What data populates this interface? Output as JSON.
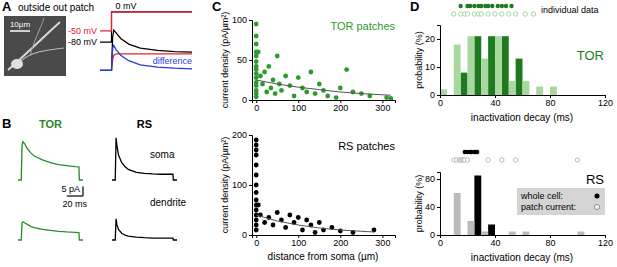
{
  "chart_data": [
    {
      "type": "line",
      "panel": "A",
      "title": "outside out patch",
      "scale_bar_label": "10µm",
      "xlim": [
        0,
        80
      ],
      "ylim": [
        -2,
        16
      ],
      "tick_labels": false,
      "x": [
        0,
        10,
        11,
        12,
        14,
        18,
        25,
        35,
        50,
        65,
        80
      ],
      "series": [
        {
          "color": "#000000",
          "values": [
            0,
            0,
            12,
            14.5,
            13.5,
            11.5,
            9.5,
            8,
            7.2,
            6.8,
            6.6
          ]
        },
        {
          "color": "#e8202a",
          "values": [
            0,
            0,
            4,
            5.5,
            6,
            6,
            6,
            6,
            6,
            6,
            6
          ]
        },
        {
          "name": "difference",
          "color": "#1f3fd8",
          "values": [
            0,
            0,
            8,
            9,
            7.5,
            5.5,
            3.5,
            2,
            1.2,
            0.8,
            0.6
          ]
        }
      ],
      "protocol": {
        "ylim": [
          -90,
          5
        ],
        "x": [
          0,
          10,
          10,
          80
        ],
        "step_label": "0 mV",
        "series": [
          {
            "name": "-80 mV",
            "color": "#000000",
            "values": [
              -80,
              -80,
              0,
              0
            ]
          },
          {
            "name": "-50 mV",
            "color": "#e8202a",
            "values": [
              -50,
              -50,
              0,
              0
            ]
          }
        ]
      }
    },
    {
      "type": "line",
      "panel": "B",
      "xlim": [
        0,
        80
      ],
      "ylim": [
        0,
        25
      ],
      "tick_labels": false,
      "x": [
        0,
        4,
        5,
        6,
        8,
        12,
        16,
        20,
        30,
        40,
        50,
        60,
        70,
        75,
        75.5,
        80
      ],
      "rows": [
        "soma",
        "dendrite"
      ],
      "series": [
        {
          "name": "TOR",
          "color": "#2a8a2a",
          "soma": [
            0,
            0,
            18,
            20,
            19,
            16,
            14,
            12.5,
            10.5,
            9,
            8,
            7.5,
            7,
            6.8,
            0,
            0
          ],
          "dendrite": [
            0,
            0,
            9,
            9.5,
            9,
            8,
            7,
            6.5,
            5.5,
            5,
            4.5,
            4.2,
            4,
            3.9,
            0,
            0
          ]
        },
        {
          "name": "RS",
          "color": "#000000",
          "soma": [
            0,
            0,
            22,
            18,
            13,
            9,
            7,
            5.5,
            4,
            3.5,
            3.2,
            3,
            3,
            3,
            0,
            0
          ],
          "dendrite": [
            0,
            0,
            11,
            8,
            5.5,
            3.5,
            2.5,
            2,
            1.5,
            1.2,
            1,
            1,
            1,
            1,
            0,
            0
          ]
        }
      ],
      "scale_bar": {
        "x": 20,
        "y": 5,
        "x_label": "20 ms",
        "y_label": "5 pA"
      }
    },
    {
      "type": "scatter",
      "panel": "C",
      "title": "TOR patches",
      "color": "#2e9a2e",
      "x": [
        0,
        0,
        0,
        0,
        0,
        0,
        0,
        0,
        0,
        0,
        0,
        0,
        0,
        0,
        0,
        5,
        10,
        15,
        20,
        25,
        30,
        35,
        40,
        45,
        50,
        55,
        60,
        70,
        80,
        90,
        100,
        110,
        120,
        130,
        140,
        150,
        160,
        170,
        190,
        200,
        215,
        230,
        250,
        270,
        310,
        320
      ],
      "values": [
        95,
        80,
        70,
        60,
        55,
        48,
        42,
        38,
        33,
        28,
        22,
        18,
        12,
        8,
        4,
        60,
        30,
        20,
        35,
        10,
        42,
        15,
        25,
        8,
        55,
        20,
        12,
        30,
        18,
        5,
        28,
        15,
        10,
        35,
        8,
        20,
        12,
        5,
        3,
        15,
        38,
        10,
        8,
        5,
        3,
        2
      ],
      "fit": {
        "x": [
          0,
          50,
          100,
          150,
          200,
          250,
          300,
          320
        ],
        "values": [
          25,
          20,
          16,
          13,
          10,
          8,
          6.5,
          6
        ]
      },
      "xlim": [
        -10,
        330
      ],
      "xticks": [
        0,
        100,
        200,
        300
      ],
      "ylim": [
        0,
        100
      ],
      "yticks": [
        0,
        50,
        100
      ],
      "ylabel": "current density (pA/µm²)"
    },
    {
      "type": "scatter",
      "title": "RS patches",
      "color": "#000000",
      "x": [
        0,
        0,
        0,
        0,
        0,
        0,
        0,
        0,
        0,
        0,
        0,
        0,
        0,
        0,
        0,
        5,
        10,
        20,
        30,
        40,
        50,
        60,
        70,
        80,
        90,
        100,
        110,
        120,
        130,
        140,
        150,
        160,
        180,
        200,
        230,
        280
      ],
      "values": [
        190,
        180,
        170,
        160,
        140,
        120,
        100,
        85,
        70,
        60,
        50,
        40,
        30,
        20,
        10,
        60,
        40,
        25,
        35,
        20,
        45,
        30,
        15,
        40,
        25,
        35,
        10,
        30,
        20,
        5,
        25,
        10,
        15,
        8,
        5,
        10
      ],
      "fit": {
        "x": [
          0,
          50,
          100,
          150,
          200,
          280
        ],
        "values": [
          40,
          28,
          20,
          14,
          10,
          6
        ]
      },
      "xlim": [
        -10,
        330
      ],
      "xticks": [
        0,
        100,
        200,
        300
      ],
      "ylim": [
        0,
        200
      ],
      "yticks": [
        0,
        100,
        200
      ],
      "xlabel": "distance from soma (µm)",
      "ylabel": "current density (pA/µm²)"
    },
    {
      "type": "histogram",
      "panel": "D",
      "title": "TOR",
      "annotation": "individual data",
      "bins": [
        0,
        10,
        20,
        30,
        40,
        50,
        60,
        70,
        80,
        90,
        100,
        110,
        120
      ],
      "series": [
        {
          "color": "#1e7a1e",
          "marker": "filled",
          "values": [
            0,
            8,
            21,
            21,
            21,
            13,
            0,
            0,
            0,
            0,
            0,
            0
          ],
          "individual": [
            15,
            20,
            22,
            25,
            28,
            30,
            33,
            35,
            38,
            42,
            45,
            48,
            52
          ]
        },
        {
          "color": "#a8d8a0",
          "marker": "open",
          "values": [
            2,
            18,
            21,
            13,
            21,
            5,
            5,
            3,
            3,
            0,
            0,
            0
          ],
          "individual": [
            10,
            15,
            18,
            20,
            25,
            28,
            30,
            35,
            40,
            45,
            50,
            55,
            62,
            68
          ]
        }
      ],
      "xlim": [
        0,
        120
      ],
      "xticks": [
        0,
        40,
        80,
        120
      ],
      "ylim": [
        0,
        25
      ],
      "yticks": [
        0,
        10,
        20
      ],
      "xlabel": "inactivation decay (ms)",
      "ylabel": "probability (%)"
    },
    {
      "type": "histogram",
      "title": "RS",
      "legend": "upper right",
      "bins": [
        0,
        10,
        20,
        30,
        40,
        50,
        60,
        70,
        80,
        90,
        100,
        110,
        120
      ],
      "series": [
        {
          "name": "whole cell:",
          "color": "#000000",
          "marker": "filled",
          "values": [
            0,
            0,
            85,
            15,
            0,
            0,
            0,
            0,
            0,
            0,
            0,
            0
          ],
          "individual": [
            18,
            20,
            22,
            23,
            25,
            27
          ]
        },
        {
          "name": "patch current:",
          "color": "#bbbbbb",
          "marker": "open",
          "values": [
            0,
            60,
            20,
            5,
            0,
            5,
            5,
            0,
            0,
            0,
            5,
            0
          ],
          "individual": [
            10,
            12,
            14,
            15,
            16,
            17,
            18,
            20,
            35,
            45,
            55,
            100
          ]
        }
      ],
      "xlim": [
        0,
        120
      ],
      "xticks": [
        0,
        40,
        80,
        120
      ],
      "ylim": [
        0,
        90
      ],
      "yticks": [
        0,
        40,
        80
      ],
      "xlabel": "inactivation decay (ms)",
      "ylabel": "probability (%)"
    }
  ]
}
